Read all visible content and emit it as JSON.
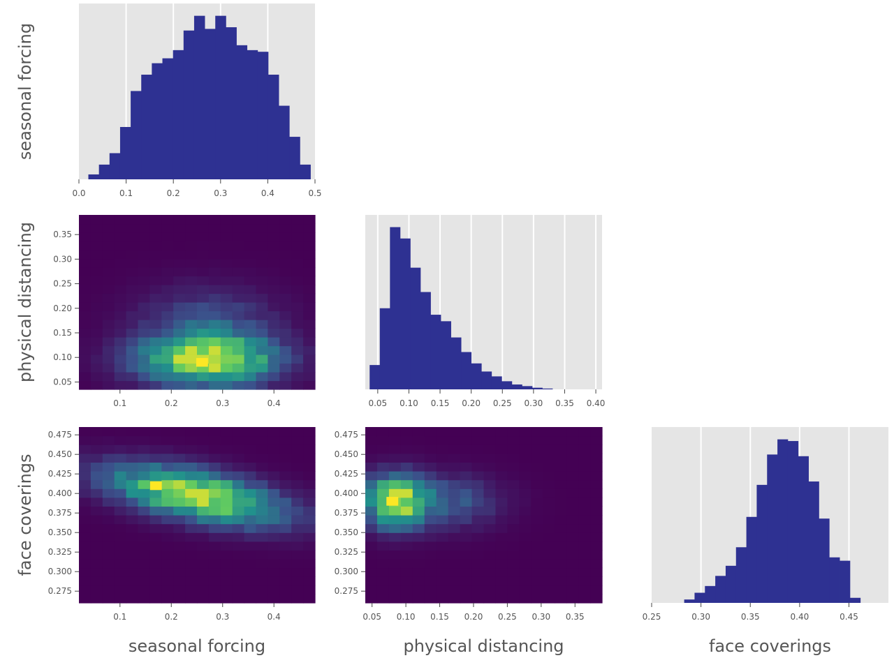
{
  "figure": {
    "type": "corner-plot",
    "variables": [
      "seasonal forcing",
      "physical distancing",
      "face coverings"
    ]
  },
  "colors": {
    "histogram_fill": "#2e3192",
    "histogram_background": "#e5e5e5",
    "grid": "#ffffff",
    "heatmap_low": "#440154",
    "heatmap_mid": "#21918c",
    "heatmap_high": "#fde725",
    "tick_text": "#555555",
    "label_text": "#555555"
  },
  "chart_data": [
    {
      "id": "hist-seasonal-forcing",
      "type": "bar",
      "histogram": true,
      "ylabel": "seasonal forcing",
      "xlabel": "",
      "xlim": [
        0.0,
        0.5
      ],
      "ticks": [
        "0.0",
        "0.1",
        "0.2",
        "0.3",
        "0.4",
        "0.5"
      ],
      "bin_start": 0.02,
      "bin_width": 0.0224,
      "counts": [
        3,
        9,
        16,
        32,
        54,
        64,
        71,
        74,
        79,
        91,
        100,
        92,
        100,
        93,
        82,
        79,
        78,
        64,
        45,
        26,
        9
      ]
    },
    {
      "id": "heatmap-physical-vs-seasonal",
      "type": "heatmap",
      "ylabel": "physical distancing",
      "xlabel": "",
      "xlim": [
        0.02,
        0.48
      ],
      "ylim": [
        0.035,
        0.39
      ],
      "xticks": [
        "0.1",
        "0.2",
        "0.3",
        "0.4"
      ],
      "yticks": [
        "0.05",
        "0.10",
        "0.15",
        "0.20",
        "0.25",
        "0.30",
        "0.35"
      ],
      "peak": {
        "x": 0.26,
        "y": 0.09
      }
    },
    {
      "id": "hist-physical-distancing",
      "type": "bar",
      "histogram": true,
      "xlabel": "",
      "xlim": [
        0.03,
        0.41
      ],
      "ticks": [
        "0.05",
        "0.10",
        "0.15",
        "0.20",
        "0.25",
        "0.30",
        "0.35",
        "0.40"
      ],
      "bin_start": 0.037,
      "bin_width": 0.0163,
      "counts": [
        15,
        50,
        100,
        93,
        75,
        60,
        46,
        42,
        32,
        23,
        16,
        11,
        8,
        5,
        3,
        2,
        1,
        0.5
      ]
    },
    {
      "id": "heatmap-face-vs-seasonal",
      "type": "heatmap",
      "ylabel": "face coverings",
      "xlabel": "seasonal forcing",
      "xlim": [
        0.02,
        0.48
      ],
      "ylim": [
        0.26,
        0.485
      ],
      "xticks": [
        "0.1",
        "0.2",
        "0.3",
        "0.4"
      ],
      "yticks": [
        "0.275",
        "0.300",
        "0.325",
        "0.350",
        "0.375",
        "0.400",
        "0.425",
        "0.450",
        "0.475"
      ],
      "peak": {
        "x": 0.17,
        "y": 0.41
      }
    },
    {
      "id": "heatmap-face-vs-physical",
      "type": "heatmap",
      "ylabel": "",
      "xlabel": "physical distancing",
      "xlim": [
        0.04,
        0.39
      ],
      "ylim": [
        0.26,
        0.485
      ],
      "xticks": [
        "0.05",
        "0.10",
        "0.15",
        "0.20",
        "0.25",
        "0.30",
        "0.35"
      ],
      "yticks": [
        "0.275",
        "0.300",
        "0.325",
        "0.350",
        "0.375",
        "0.400",
        "0.425",
        "0.450",
        "0.475"
      ],
      "peak": {
        "x": 0.08,
        "y": 0.39
      }
    },
    {
      "id": "hist-face-coverings",
      "type": "bar",
      "histogram": true,
      "xlabel": "face coverings",
      "xlim": [
        0.25,
        0.49
      ],
      "ticks": [
        "0.25",
        "0.30",
        "0.35",
        "0.40",
        "0.45"
      ],
      "bin_start": 0.283,
      "bin_width": 0.0105,
      "counts": [
        2,
        6,
        10,
        16,
        22,
        33,
        51,
        70,
        88,
        97,
        96,
        87,
        72,
        50,
        27,
        25,
        3
      ]
    }
  ]
}
